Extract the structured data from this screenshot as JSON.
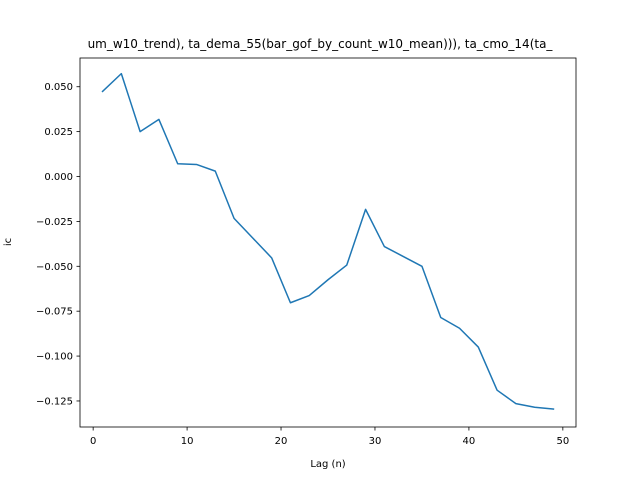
{
  "chart_data": {
    "type": "line",
    "title": "um_w10_trend), ta_dema_55(bar_gof_by_count_w10_mean))), ta_cmo_14(ta_",
    "xlabel": "Lag (n)",
    "ylabel": "ic",
    "xlim": [
      -1.4,
      51.4
    ],
    "ylim": [
      -0.1395,
      0.066
    ],
    "xticks": [
      0,
      10,
      20,
      30,
      40,
      50
    ],
    "yticks": [
      0.05,
      0.025,
      0.0,
      -0.025,
      -0.05,
      -0.075,
      -0.1,
      -0.125
    ],
    "ytick_labels": [
      "0.050",
      "0.025",
      "0.000",
      "−0.025",
      "−0.050",
      "−0.075",
      "−0.100",
      "−0.125"
    ],
    "grid": false,
    "line_color": "#1f77b4",
    "series": [
      {
        "x": [
          1,
          3,
          5,
          7,
          9,
          11,
          13,
          15,
          17,
          19,
          21,
          23,
          25,
          27,
          29,
          31,
          33,
          35,
          37,
          39,
          41,
          43,
          45,
          47,
          49
        ],
        "values": [
          0.0474,
          0.0573,
          0.025,
          0.0318,
          0.0071,
          0.0067,
          0.003,
          -0.0233,
          -0.0343,
          -0.0453,
          -0.0703,
          -0.0663,
          -0.0575,
          -0.0493,
          -0.0183,
          -0.039,
          -0.0445,
          -0.05,
          -0.0785,
          -0.0845,
          -0.095,
          -0.119,
          -0.1265,
          -0.1285,
          -0.1295
        ]
      }
    ]
  }
}
